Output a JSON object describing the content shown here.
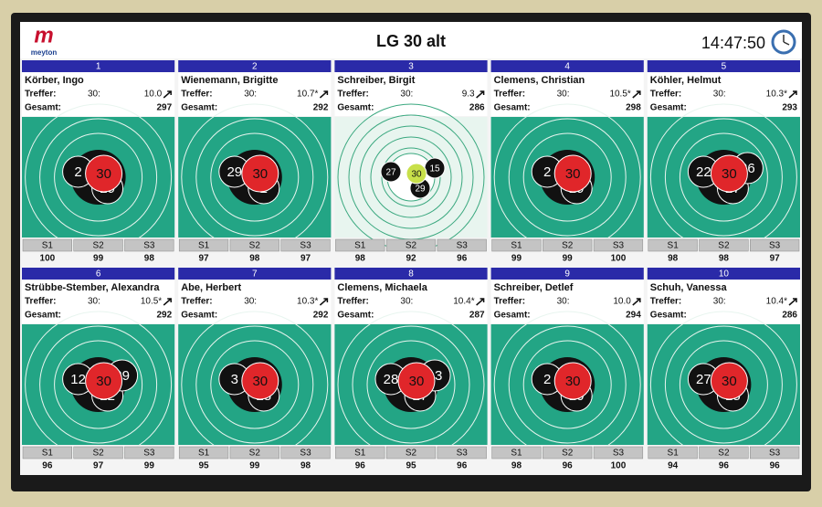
{
  "header": {
    "logo": "meyton",
    "title": "LG 30 alt",
    "time": "14:47:50"
  },
  "labels": {
    "hits": "Treffer:",
    "shot": "30:",
    "total": "Gesamt:",
    "series": [
      "S1",
      "S2",
      "S3"
    ]
  },
  "lanes": [
    {
      "number": 1,
      "name": "Körber, Ingo",
      "last": "10.0",
      "total": 297,
      "series": [
        100,
        99,
        98
      ],
      "shots": [
        "2",
        "29",
        "30"
      ],
      "highlight": "#e0262a"
    },
    {
      "number": 2,
      "name": "Wienemann, Brigitte",
      "last": "10.7*",
      "total": 292,
      "series": [
        97,
        98,
        97
      ],
      "shots": [
        "29",
        "2",
        "30"
      ],
      "highlight": "#e0262a"
    },
    {
      "number": 3,
      "name": "Schreiber, Birgit",
      "last": "9.3",
      "total": 286,
      "series": [
        98,
        92,
        96
      ],
      "shots": [
        "27",
        "29",
        "15",
        "30"
      ],
      "highlight": "#c8e04a"
    },
    {
      "number": 4,
      "name": "Clemens, Christian",
      "last": "10.5*",
      "total": 298,
      "series": [
        99,
        99,
        100
      ],
      "shots": [
        "2",
        "29",
        "30"
      ],
      "highlight": "#e0262a"
    },
    {
      "number": 5,
      "name": "Köhler, Helmut",
      "last": "10.3*",
      "total": 293,
      "series": [
        98,
        98,
        97
      ],
      "shots": [
        "22",
        "27",
        "26",
        "30"
      ],
      "highlight": "#e0262a"
    },
    {
      "number": 6,
      "name": "Strübbe-Stember, Alexandra",
      "last": "10.5*",
      "total": 292,
      "series": [
        96,
        97,
        99
      ],
      "shots": [
        "12",
        "22",
        "29",
        "30"
      ],
      "highlight": "#e0262a"
    },
    {
      "number": 7,
      "name": "Abe, Herbert",
      "last": "10.3*",
      "total": 292,
      "series": [
        95,
        99,
        98
      ],
      "shots": [
        "3",
        "28",
        "30"
      ],
      "highlight": "#e0262a"
    },
    {
      "number": 8,
      "name": "Clemens, Michaela",
      "last": "10.4*",
      "total": 287,
      "series": [
        96,
        95,
        96
      ],
      "shots": [
        "28",
        "27",
        "13",
        "30"
      ],
      "highlight": "#e0262a"
    },
    {
      "number": 9,
      "name": "Schreiber, Detlef",
      "last": "10.0",
      "total": 294,
      "series": [
        98,
        96,
        100
      ],
      "shots": [
        "2",
        "20",
        "30"
      ],
      "highlight": "#e0262a"
    },
    {
      "number": 10,
      "name": "Schuh, Vanessa",
      "last": "10.4*",
      "total": 286,
      "series": [
        94,
        96,
        96
      ],
      "shots": [
        "27",
        "15",
        "30"
      ],
      "highlight": "#e0262a"
    }
  ]
}
